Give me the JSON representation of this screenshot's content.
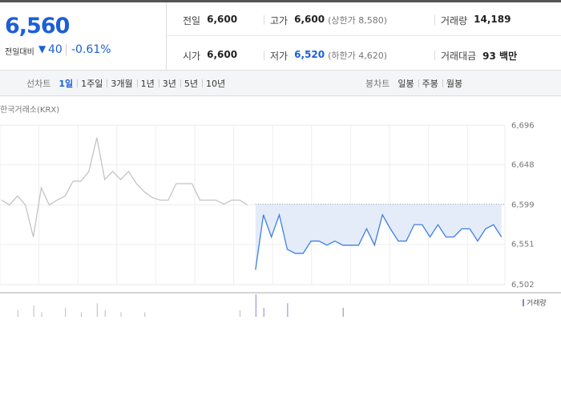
{
  "header": {
    "price": "6,560",
    "change_label": "전일대비",
    "change": "40",
    "change_rate": "-0.61%"
  },
  "summary": [
    [
      {
        "label": "전일",
        "value": "6,600"
      },
      {
        "label": "고가",
        "value": "6,600",
        "note": "(상한가 8,580)"
      },
      {
        "label": "거래량",
        "value": "14,189"
      }
    ],
    [
      {
        "label": "시가",
        "value": "6,600"
      },
      {
        "label": "저가",
        "value": "6,520",
        "note": "(하한가 4,620)"
      },
      {
        "label": "거래대금",
        "value": "93 백만"
      }
    ]
  ],
  "tabs": {
    "line_label": "선차트",
    "line": [
      "1일",
      "1주일",
      "3개월",
      "1년",
      "3년",
      "5년",
      "10년"
    ],
    "candle_label": "봉차트",
    "candle": [
      "일봉",
      "주봉",
      "월봉"
    ]
  },
  "chart_data": {
    "type": "line",
    "source": "한국거래소(KRX)",
    "ylim": [
      6492,
      6715
    ],
    "yticks": [
      {
        "value": 6696,
        "label": "6,696"
      },
      {
        "value": 6648,
        "label": "6,648"
      },
      {
        "value": 6599,
        "label": "6,599"
      },
      {
        "value": 6551,
        "label": "6,551"
      },
      {
        "value": 6502,
        "label": "6,502"
      }
    ],
    "baseline": 6600,
    "series": [
      {
        "color": "#c4c4c4",
        "values": [
          6605,
          6599,
          6610,
          6599,
          6560,
          6620,
          6599,
          6605,
          6610,
          6628,
          6628,
          6640,
          6681,
          6630,
          6640,
          6630,
          6640,
          6625,
          6615,
          6608,
          6605,
          6605,
          6625,
          6625,
          6625,
          6605,
          6605,
          6605,
          6600,
          6605,
          6605,
          6599,
          null,
          null,
          null,
          null,
          null,
          null,
          null,
          null,
          null,
          null,
          null,
          null,
          null,
          null,
          null,
          null,
          null,
          null,
          null,
          null,
          null,
          null,
          null,
          null,
          null,
          null,
          null,
          null,
          null,
          null,
          null,
          null
        ]
      },
      {
        "color": "#3f7fe0",
        "values": [
          null,
          null,
          null,
          null,
          null,
          null,
          null,
          null,
          null,
          null,
          null,
          null,
          null,
          null,
          null,
          null,
          null,
          null,
          null,
          null,
          null,
          null,
          null,
          null,
          null,
          null,
          null,
          null,
          null,
          null,
          null,
          null,
          6520,
          6587,
          6560,
          6587,
          6545,
          6540,
          6540,
          6555,
          6555,
          6550,
          6555,
          6550,
          6550,
          6550,
          6570,
          6550,
          6587,
          6570,
          6555,
          6555,
          6575,
          6575,
          6560,
          6575,
          6560,
          6560,
          6570,
          6570,
          6555,
          6570,
          6575,
          6560
        ]
      }
    ],
    "volume": {
      "name": "거래량",
      "color": "#8a7fd6",
      "values": [
        null,
        null,
        3,
        null,
        5,
        2,
        null,
        null,
        4,
        null,
        2,
        null,
        6,
        3,
        null,
        2,
        null,
        null,
        2,
        null,
        null,
        null,
        null,
        null,
        null,
        null,
        null,
        null,
        null,
        null,
        3,
        null,
        10,
        4,
        null,
        null,
        6,
        null,
        null,
        null,
        null,
        null,
        null,
        4,
        null,
        null,
        null,
        null,
        null,
        null,
        null,
        null,
        null,
        null,
        null,
        null,
        null,
        null,
        null,
        null,
        null,
        null,
        null,
        null
      ]
    }
  }
}
